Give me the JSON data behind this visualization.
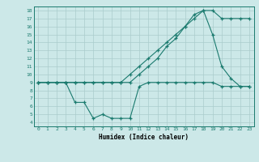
{
  "title": "",
  "xlabel": "Humidex (Indice chaleur)",
  "bg_color": "#cce8e8",
  "line_color": "#1a7a6e",
  "grid_color": "#aacccc",
  "xlim": [
    -0.5,
    23.5
  ],
  "ylim": [
    3.5,
    18.5
  ],
  "xticks": [
    0,
    1,
    2,
    3,
    4,
    5,
    6,
    7,
    8,
    9,
    10,
    11,
    12,
    13,
    14,
    15,
    16,
    17,
    18,
    19,
    20,
    21,
    22,
    23
  ],
  "yticks": [
    4,
    5,
    6,
    7,
    8,
    9,
    10,
    11,
    12,
    13,
    14,
    15,
    16,
    17,
    18
  ],
  "line1_x": [
    0,
    1,
    2,
    3,
    4,
    5,
    6,
    7,
    8,
    9,
    10,
    11,
    12,
    13,
    14,
    15,
    16,
    17,
    18,
    19,
    20,
    21,
    22,
    23
  ],
  "line1_y": [
    9,
    9,
    9,
    9,
    9,
    9,
    9,
    9,
    9,
    9,
    10,
    11,
    12,
    13,
    14,
    15,
    16,
    17,
    18,
    18,
    17,
    17,
    17,
    17
  ],
  "line2_x": [
    0,
    1,
    2,
    3,
    4,
    5,
    6,
    7,
    8,
    9,
    10,
    11,
    12,
    13,
    14,
    15,
    16,
    17,
    18,
    19,
    20,
    21,
    22,
    23
  ],
  "line2_y": [
    9,
    9,
    9,
    9,
    9,
    9,
    9,
    9,
    9,
    9,
    9,
    10,
    11,
    12,
    13.5,
    14.5,
    16,
    17.5,
    18,
    15,
    11,
    9.5,
    8.5,
    8.5
  ],
  "line3_x": [
    0,
    1,
    2,
    3,
    4,
    5,
    6,
    7,
    8,
    9,
    10,
    11,
    12,
    13,
    14,
    15,
    16,
    17,
    18,
    19,
    20,
    21,
    22,
    23
  ],
  "line3_y": [
    9,
    9,
    9,
    9,
    6.5,
    6.5,
    4.5,
    5,
    4.5,
    4.5,
    4.5,
    8.5,
    9,
    9,
    9,
    9,
    9,
    9,
    9,
    9,
    8.5,
    8.5,
    8.5,
    8.5
  ]
}
